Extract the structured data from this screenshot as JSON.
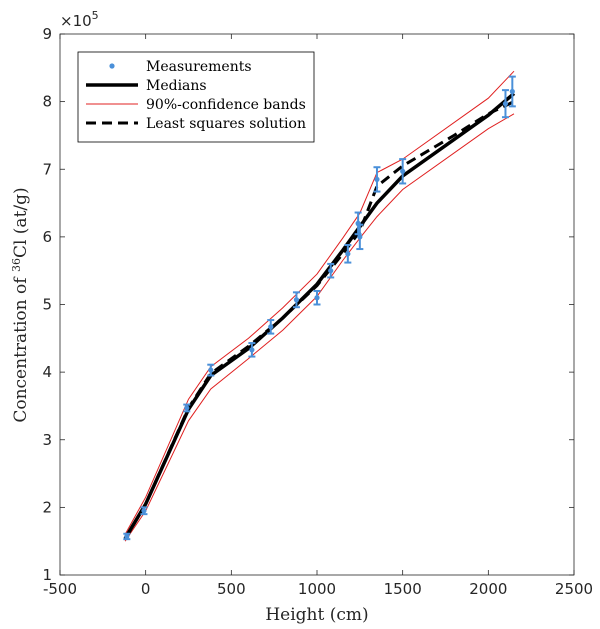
{
  "chart_data": {
    "type": "scatter",
    "xlabel": "Height (cm)",
    "ylabel": "Concentration of 36Cl (at/g)",
    "ylabel_parts": {
      "prefix": "Concentration of ",
      "superscript": "36",
      "suffix": "Cl (at/g)"
    },
    "y_multiplier": {
      "base": "×10",
      "exponent": "5"
    },
    "xlim": [
      -500,
      2500
    ],
    "ylim": [
      1,
      9
    ],
    "x_ticks": [
      -500,
      0,
      500,
      1000,
      1500,
      2000,
      2500
    ],
    "y_ticks": [
      1,
      2,
      3,
      4,
      5,
      6,
      7,
      8,
      9
    ],
    "grid": false,
    "legend_position": "top-left",
    "series": [
      {
        "name": "Measurements",
        "kind": "errorbar",
        "color": "#4a90d9",
        "points": [
          {
            "x": -110,
            "y": 1.57,
            "err": 0.04
          },
          {
            "x": -10,
            "y": 1.95,
            "err": 0.05
          },
          {
            "x": 240,
            "y": 3.47,
            "err": 0.05
          },
          {
            "x": 380,
            "y": 4.03,
            "err": 0.08
          },
          {
            "x": 620,
            "y": 4.33,
            "err": 0.1
          },
          {
            "x": 730,
            "y": 4.67,
            "err": 0.1
          },
          {
            "x": 880,
            "y": 5.07,
            "err": 0.11
          },
          {
            "x": 1000,
            "y": 5.1,
            "err": 0.1
          },
          {
            "x": 1080,
            "y": 5.5,
            "err": 0.1
          },
          {
            "x": 1180,
            "y": 5.75,
            "err": 0.13
          },
          {
            "x": 1240,
            "y": 6.2,
            "err": 0.16
          },
          {
            "x": 1250,
            "y": 6.0,
            "err": 0.18
          },
          {
            "x": 1350,
            "y": 6.85,
            "err": 0.18
          },
          {
            "x": 1500,
            "y": 6.97,
            "err": 0.18
          },
          {
            "x": 2100,
            "y": 7.97,
            "err": 0.2
          },
          {
            "x": 2140,
            "y": 8.15,
            "err": 0.22
          }
        ]
      },
      {
        "name": "Medians",
        "kind": "line",
        "color": "#000000",
        "x": [
          -120,
          0,
          250,
          380,
          600,
          800,
          1000,
          1150,
          1250,
          1350,
          1500,
          2000,
          2150
        ],
        "y": [
          1.54,
          2.05,
          3.45,
          3.95,
          4.35,
          4.8,
          5.3,
          5.8,
          6.15,
          6.5,
          6.9,
          7.8,
          8.12
        ]
      },
      {
        "name": "90%-confidence bands",
        "kind": "band",
        "color": "#e02020",
        "x": [
          -120,
          0,
          250,
          380,
          600,
          800,
          1000,
          1150,
          1250,
          1350,
          1500,
          2000,
          2150
        ],
        "upper": [
          1.6,
          2.15,
          3.6,
          4.08,
          4.5,
          4.95,
          5.45,
          5.98,
          6.35,
          6.95,
          7.15,
          8.05,
          8.45
        ],
        "lower": [
          1.5,
          1.95,
          3.28,
          3.75,
          4.2,
          4.62,
          5.12,
          5.65,
          5.98,
          6.3,
          6.7,
          7.6,
          7.82
        ]
      },
      {
        "name": "Least squares solution",
        "kind": "dashed-line",
        "color": "#000000",
        "x": [
          -120,
          0,
          250,
          380,
          600,
          800,
          1000,
          1150,
          1250,
          1350,
          1500,
          1800,
          2000,
          2150
        ],
        "y": [
          1.53,
          2.05,
          3.47,
          3.98,
          4.38,
          4.8,
          5.28,
          5.75,
          6.08,
          6.75,
          7.05,
          7.5,
          7.82,
          8.0
        ]
      }
    ]
  }
}
